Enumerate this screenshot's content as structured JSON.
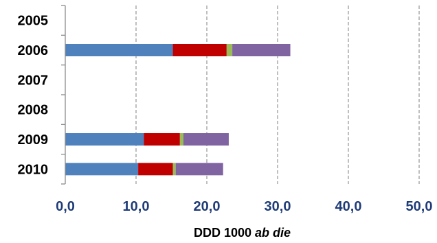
{
  "chart_data": {
    "type": "bar",
    "orientation": "horizontal",
    "stacked": true,
    "categories": [
      "2005",
      "2006",
      "2007",
      "2008",
      "2009",
      "2010"
    ],
    "series": [
      {
        "values": [
          0,
          15.2,
          0,
          0,
          11.1,
          10.3
        ],
        "color": "#4f81bd"
      },
      {
        "values": [
          0,
          7.6,
          0,
          0,
          5.1,
          4.9
        ],
        "color": "#c00000"
      },
      {
        "values": [
          0,
          0.8,
          0,
          0,
          0.5,
          0.4
        ],
        "color": "#9bbb59"
      },
      {
        "values": [
          0,
          8.2,
          0,
          0,
          6.4,
          6.7
        ],
        "color": "#8064a2"
      }
    ],
    "xlim": [
      0,
      50
    ],
    "x_ticks": [
      "0,0",
      "10,0",
      "20,0",
      "30,0",
      "40,0",
      "50,0"
    ],
    "xlabel_prefix": "DDD 1000 ",
    "xlabel_italic": "ab die",
    "grid": {
      "x": true,
      "style": "dashed",
      "color": "#7f7f7f"
    },
    "legend": "none"
  }
}
